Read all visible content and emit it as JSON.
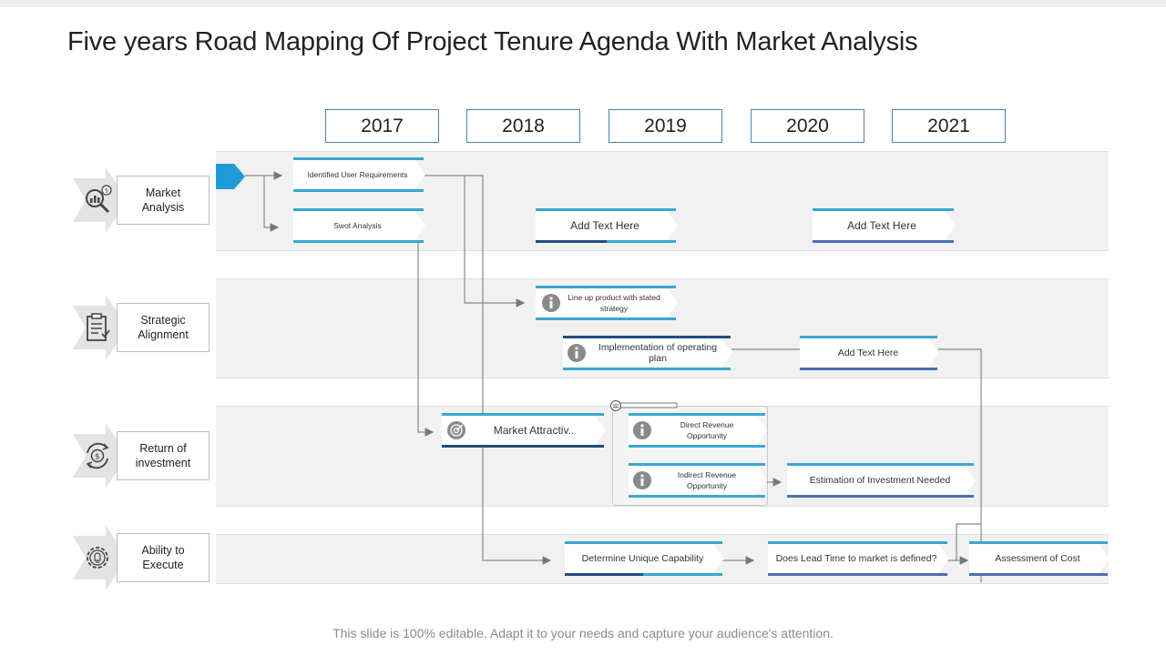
{
  "title": "Five years Road Mapping Of Project Tenure Agenda With Market Analysis",
  "years": [
    "2017",
    "2018",
    "2019",
    "2020",
    "2021"
  ],
  "categories": [
    {
      "label": "Market\nAnalysis",
      "icon": "magnifier-chart-icon"
    },
    {
      "label": "Strategic\nAlignment",
      "icon": "clipboard-checklist-icon"
    },
    {
      "label": "Return of\ninvestment",
      "icon": "dollar-cycle-icon"
    },
    {
      "label": "Ability to\nExecute",
      "icon": "gear-idea-icon"
    }
  ],
  "tasks": {
    "identified_user_requirements": "Identified User Requirements",
    "swot_analysis": "Swot Analysis",
    "add_text_1": "Add Text Here",
    "add_text_2": "Add Text Here",
    "line_up_product": "Line up product with stated strategy",
    "implementation_plan": "Implementation  of operating plan",
    "add_text_3": "Add Text Here",
    "market_attractiveness": "Market Attractiv..",
    "direct_revenue": "Direct Revenue Opportunity",
    "indirect_revenue": "Indirect Revenue Opportunity",
    "estimation_investment": "Estimation  of Investment Needed",
    "determine_capability": "Determine Unique Capability",
    "lead_time": "Does Lead Time  to market is defined?",
    "assessment_cost": "Assessment of Cost"
  },
  "colors": {
    "accent": "#1e9bd7",
    "dark_blue": "#1f4e79",
    "light_blue": "#3aa6cf",
    "year_border": "#4a82a8",
    "lane_bg": "#f1f1f1"
  },
  "footer": "This slide is 100% editable. Adapt it to your needs and capture your audience's attention."
}
